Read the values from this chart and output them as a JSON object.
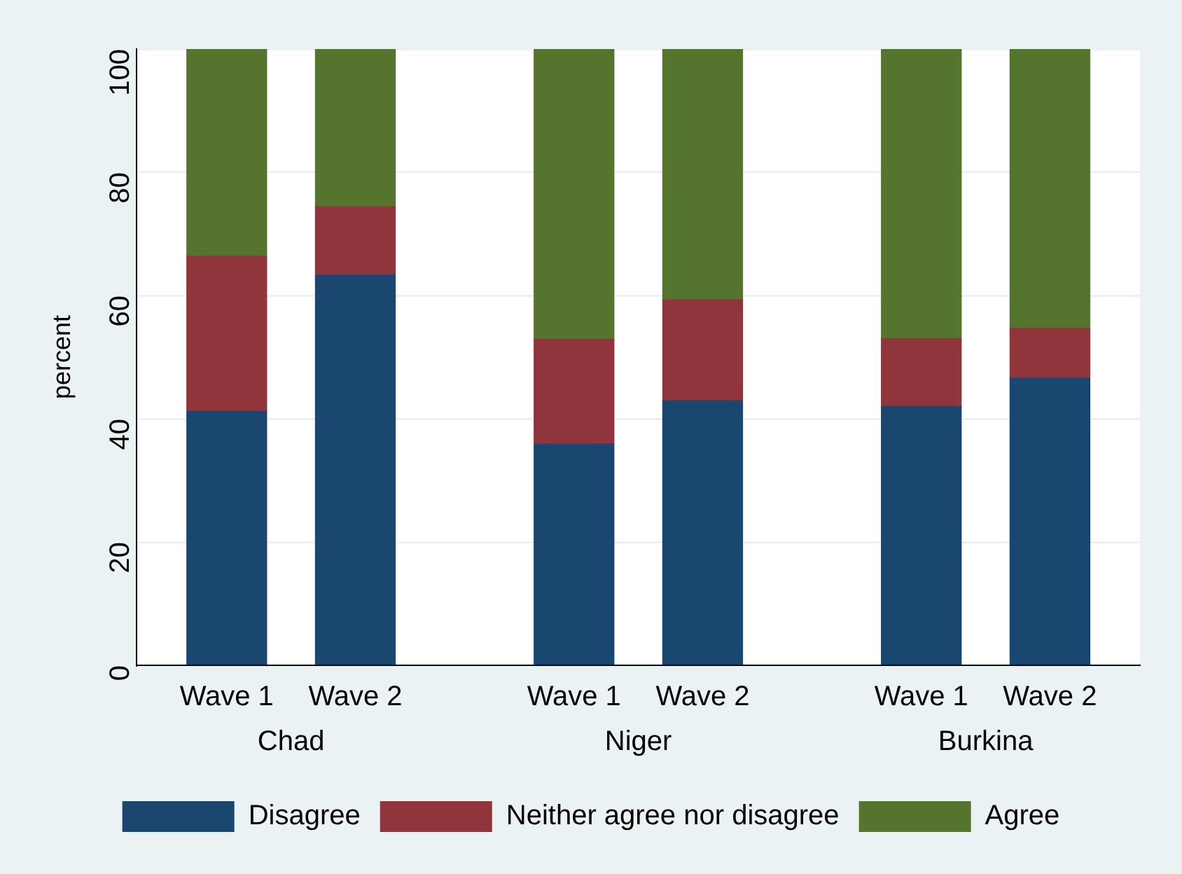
{
  "chart_data": {
    "type": "bar",
    "stacked": true,
    "ylabel": "percent",
    "categories": [
      "Wave 1",
      "Wave 2",
      "Wave 1",
      "Wave 2",
      "Wave 1",
      "Wave 2"
    ],
    "annotations": [
      "Chad",
      "Niger",
      "Burkina"
    ],
    "series": [
      {
        "name": "Disagree",
        "color": "#1a476f",
        "values": [
          41.2,
          63.3,
          35.9,
          42.9,
          42.0,
          46.6
        ]
      },
      {
        "name": "Neither agree nor disagree",
        "color": "#90353b",
        "values": [
          25.2,
          11.1,
          17.0,
          16.4,
          11.0,
          8.1
        ]
      },
      {
        "name": "Agree",
        "color": "#55752f",
        "values": [
          33.6,
          25.6,
          47.1,
          40.7,
          47.0,
          45.3
        ]
      }
    ],
    "ylim": [
      0,
      100
    ],
    "yticks": [
      0,
      20,
      40,
      60,
      80,
      100
    ],
    "grid": "y",
    "legend": "bottom"
  }
}
